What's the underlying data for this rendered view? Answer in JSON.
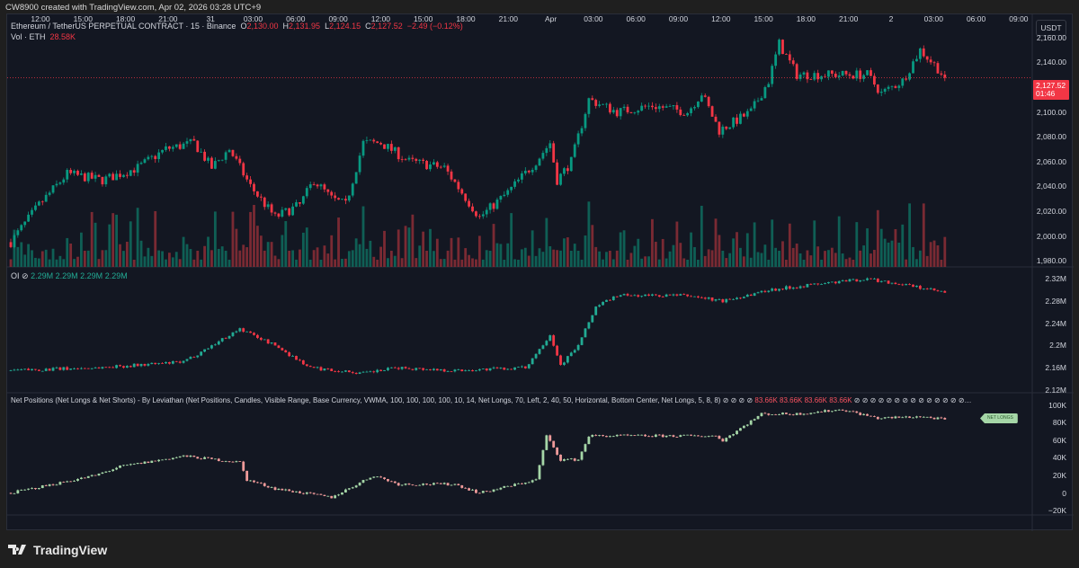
{
  "credit": "CW8900 created with TradingView.com, Apr 02, 2026 03:28 UTC+9",
  "symbol": {
    "title": "Ethereum / TetherUS PERPETUAL CONTRACT · 15 · Binance",
    "o_label": "O",
    "o": "2,130.00",
    "h_label": "H",
    "h": "2,131.95",
    "l_label": "L",
    "l": "2,124.15",
    "c_label": "C",
    "c": "2,127.52",
    "change": "−2.49 (−0.12%)"
  },
  "volume": {
    "label": "Vol · ETH",
    "value": "28.58K"
  },
  "oi": {
    "label": "OI",
    "values": [
      "2.29M",
      "2.29M",
      "2.29M",
      "2.29M"
    ]
  },
  "netpos": {
    "label": "Net Positions (Net Longs & Net Shorts) - By Leviathan (Net Positions, Candles, Visible Range, Base Currency, VWMA, 100, 100, 100, 100, 10, 14, Net Longs, 70, Left, 2, 40, 50, Horizontal, Bottom Center, Net Longs, 5, 8, 8)",
    "values_before": "⊘ ⊘ ⊘ ⊘",
    "values": [
      "83.66K",
      "83.66K",
      "83.66K",
      "83.66K"
    ],
    "values_after": "⊘ ⊘ ⊘ ⊘ ⊘ ⊘ ⊘ ⊘ ⊘ ⊘ ⊘ ⊘ ⊘ ⊘…",
    "tag": "NET LONGS"
  },
  "currency": "USDT",
  "last_price": {
    "price": "2,127.52",
    "countdown": "01:46"
  },
  "price_axis": [
    "2,160.00",
    "2,140.00",
    "2,100.00",
    "2,080.00",
    "2,060.00",
    "2,040.00",
    "2,020.00",
    "2,000.00",
    "1,980.00"
  ],
  "oi_axis": [
    "2.32M",
    "2.28M",
    "2.24M",
    "2.2M",
    "2.16M",
    "2.12M"
  ],
  "np_axis": [
    "100K",
    "80K",
    "60K",
    "40K",
    "20K",
    "0",
    "−20K"
  ],
  "time_axis": [
    "12:00",
    "15:00",
    "18:00",
    "21:00",
    "31",
    "03:00",
    "06:00",
    "09:00",
    "12:00",
    "15:00",
    "18:00",
    "21:00",
    "Apr",
    "03:00",
    "06:00",
    "09:00",
    "12:00",
    "15:00",
    "18:00",
    "21:00",
    "2",
    "03:00",
    "06:00",
    "09:00"
  ],
  "footer": "TradingView",
  "colors": {
    "up": "#089981",
    "down": "#f23645",
    "np_up": "#a5d6a7",
    "np_down": "#ef9a9a",
    "bg": "#131722"
  },
  "chart_data": [
    {
      "type": "candlestick",
      "name": "ETHUSDT.P 15m",
      "ylim": [
        1975,
        2175
      ],
      "keypoints": [
        [
          0,
          1995
        ],
        [
          8,
          2025
        ],
        [
          16,
          2050
        ],
        [
          26,
          2045
        ],
        [
          36,
          2055
        ],
        [
          44,
          2070
        ],
        [
          52,
          2075
        ],
        [
          57,
          2055
        ],
        [
          62,
          2070
        ],
        [
          68,
          2040
        ],
        [
          75,
          2015
        ],
        [
          82,
          2025
        ],
        [
          86,
          2045
        ],
        [
          91,
          2030
        ],
        [
          95,
          2025
        ],
        [
          100,
          2075
        ],
        [
          105,
          2075
        ],
        [
          113,
          2060
        ],
        [
          123,
          2055
        ],
        [
          133,
          2015
        ],
        [
          141,
          2035
        ],
        [
          149,
          2060
        ],
        [
          153,
          2075
        ],
        [
          155,
          2045
        ],
        [
          159,
          2060
        ],
        [
          164,
          2110
        ],
        [
          172,
          2100
        ],
        [
          182,
          2105
        ],
        [
          192,
          2100
        ],
        [
          196,
          2115
        ],
        [
          201,
          2085
        ],
        [
          210,
          2100
        ],
        [
          215,
          2125
        ],
        [
          218,
          2155
        ],
        [
          223,
          2130
        ],
        [
          233,
          2130
        ],
        [
          243,
          2130
        ],
        [
          247,
          2115
        ],
        [
          253,
          2125
        ],
        [
          258,
          2150
        ],
        [
          263,
          2135
        ],
        [
          265,
          2127.52
        ]
      ]
    },
    {
      "type": "candlestick",
      "name": "OI (M)",
      "ylim": [
        2.115,
        2.335
      ],
      "keypoints": [
        [
          0,
          2.155
        ],
        [
          24,
          2.16
        ],
        [
          49,
          2.17
        ],
        [
          65,
          2.23
        ],
        [
          75,
          2.2
        ],
        [
          85,
          2.16
        ],
        [
          100,
          2.15
        ],
        [
          110,
          2.16
        ],
        [
          126,
          2.155
        ],
        [
          146,
          2.16
        ],
        [
          153,
          2.22
        ],
        [
          156,
          2.165
        ],
        [
          161,
          2.2
        ],
        [
          166,
          2.27
        ],
        [
          172,
          2.29
        ],
        [
          192,
          2.29
        ],
        [
          202,
          2.28
        ],
        [
          215,
          2.3
        ],
        [
          228,
          2.31
        ],
        [
          243,
          2.32
        ],
        [
          253,
          2.31
        ],
        [
          265,
          2.295
        ]
      ]
    },
    {
      "type": "candlestick",
      "name": "Net Longs (K)",
      "ylim": [
        -25,
        110
      ],
      "keypoints": [
        [
          0,
          0
        ],
        [
          24,
          20
        ],
        [
          31,
          30
        ],
        [
          49,
          42
        ],
        [
          65,
          35
        ],
        [
          67,
          15
        ],
        [
          75,
          5
        ],
        [
          91,
          -5
        ],
        [
          103,
          20
        ],
        [
          110,
          10
        ],
        [
          126,
          10
        ],
        [
          133,
          0
        ],
        [
          149,
          15
        ],
        [
          152,
          65
        ],
        [
          156,
          38
        ],
        [
          161,
          38
        ],
        [
          164,
          65
        ],
        [
          177,
          65
        ],
        [
          200,
          65
        ],
        [
          202,
          60
        ],
        [
          213,
          90
        ],
        [
          223,
          90
        ],
        [
          236,
          95
        ],
        [
          246,
          85
        ],
        [
          258,
          87
        ],
        [
          265,
          83.66
        ]
      ]
    }
  ]
}
